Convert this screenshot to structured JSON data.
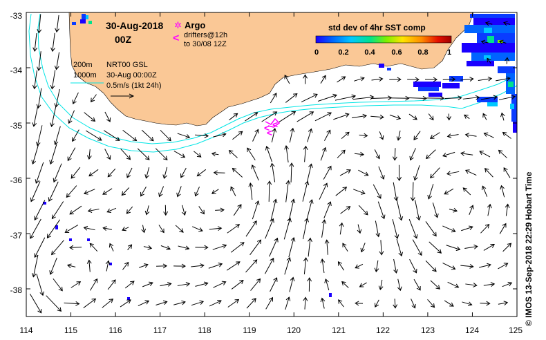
{
  "title": {
    "date": "30-Aug-2018",
    "time": "00Z"
  },
  "legend": {
    "argo_label": "Argo",
    "argo_symbol": "✲",
    "drifter_symbol": "<",
    "drifters_label": "drifters@12h",
    "drifters_to": "to 30/08 12Z",
    "isobath_200": "200m",
    "isobath_1000": "1000m",
    "product": "NRT00 GSL",
    "product_time": "30-Aug 00:00Z",
    "scale_label": "0.5m/s (1kt 24h)"
  },
  "colorbar": {
    "title": "std dev of 4hr SST comp",
    "ticks": [
      "0",
      "0.2",
      "0.4",
      "0.6",
      "0.8",
      "1"
    ],
    "colors": [
      "#1a00ff",
      "#0064ff",
      "#00c8ff",
      "#00e28c",
      "#7df000",
      "#ffe400",
      "#ff8c00",
      "#e61000",
      "#a00000"
    ]
  },
  "axes": {
    "x_ticks": [
      "114",
      "115",
      "116",
      "117",
      "118",
      "119",
      "120",
      "121",
      "122",
      "123",
      "124",
      "125"
    ],
    "y_ticks": [
      "-33",
      "-34",
      "-35",
      "-36",
      "-37",
      "-38"
    ],
    "lon_range": [
      114,
      125
    ],
    "lat_range": [
      -38.5,
      -33
    ]
  },
  "credit": "© IMOS 13-Sep-2018 22:29 Hobart Time",
  "colors": {
    "land": "#fac896",
    "isobath": "#00e5e5",
    "argo": "#ff00ff",
    "drifter": "#ff00ff"
  }
}
